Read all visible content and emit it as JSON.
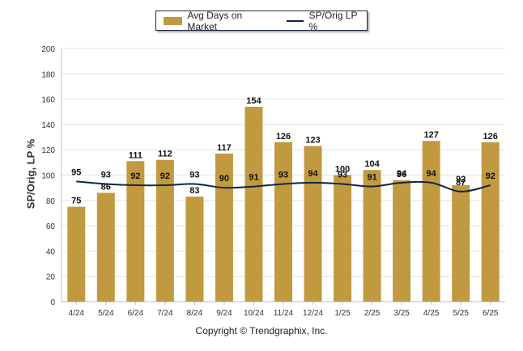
{
  "chart_data": {
    "type": "bar",
    "categories": [
      "4/24",
      "5/24",
      "6/24",
      "7/24",
      "8/24",
      "9/24",
      "10/24",
      "11/24",
      "12/24",
      "1/25",
      "2/25",
      "3/25",
      "4/25",
      "5/25",
      "6/25"
    ],
    "series": [
      {
        "name": "Avg Days on Market",
        "type": "bar",
        "color": "#C19A3F",
        "values": [
          75,
          86,
          111,
          112,
          83,
          117,
          154,
          126,
          123,
          100,
          104,
          96,
          127,
          92,
          126
        ]
      },
      {
        "name": "SP/Orig LP %",
        "type": "line",
        "color": "#0F2744",
        "values": [
          95,
          93,
          92,
          92,
          93,
          90,
          91,
          93,
          94,
          93,
          91,
          94,
          94,
          87,
          92
        ]
      }
    ],
    "ylabel": "SP/Orig, LP %",
    "ylim": [
      0,
      200
    ],
    "yticks": [
      0,
      20,
      40,
      60,
      80,
      100,
      120,
      140,
      160,
      180,
      200
    ],
    "grid": true,
    "legend": "top-center",
    "footer": "Copyright © Trendgraphix, Inc."
  }
}
